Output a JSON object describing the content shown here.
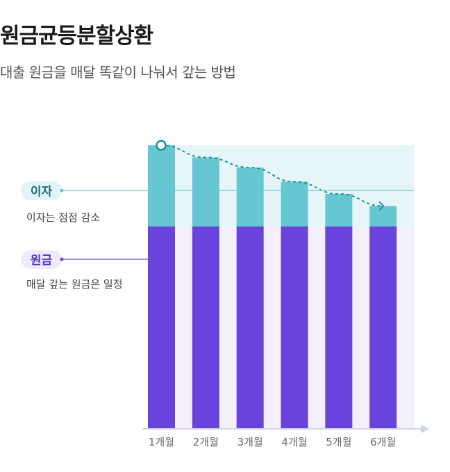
{
  "header": {
    "title": "원금균등분할상환",
    "subtitle": "대출 원금을 매달 똑같이 나눠서 갚는 방법"
  },
  "legend": {
    "interest_label": "이자",
    "interest_desc": "이자는 점점 감소",
    "principal_label": "원금",
    "principal_desc": "매달 갚는 원금은 일정"
  },
  "colors": {
    "principal": "#6844dc",
    "interest": "#66c6d2",
    "interest_band": "#e6f6f8",
    "column_bg": "#f3f0fb",
    "trend": "#1f8f97",
    "axis": "#cfd6e4"
  },
  "chart_data": {
    "type": "bar",
    "stacked": true,
    "categories": [
      "1개월",
      "2개월",
      "3개월",
      "4개월",
      "5개월",
      "6개월"
    ],
    "series": [
      {
        "name": "원금",
        "values": [
          100,
          100,
          100,
          100,
          100,
          100
        ]
      },
      {
        "name": "이자",
        "values": [
          40,
          34,
          29,
          22,
          16,
          10
        ]
      }
    ],
    "ylim": [
      0,
      140
    ],
    "trend": "dashed decreasing arrow over interest",
    "grid": false
  }
}
